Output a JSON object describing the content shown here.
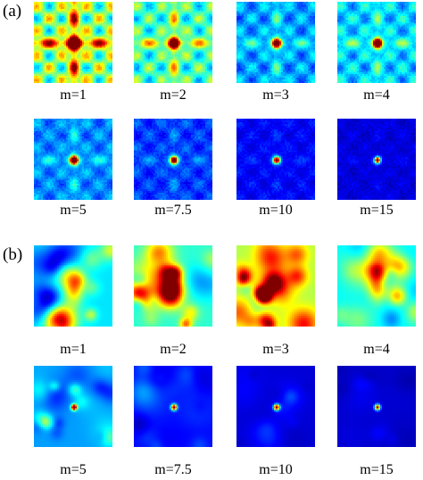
{
  "figure": {
    "panel_a": {
      "label": "(a)",
      "captions": [
        "m=1",
        "m=2",
        "m=3",
        "m=4",
        "m=5",
        "m=7.5",
        "m=10",
        "m=15"
      ]
    },
    "panel_b": {
      "label": "(b)",
      "captions": [
        "m=1",
        "m=2",
        "m=3",
        "m=4",
        "m=5",
        "m=7.5",
        "m=10",
        "m=15"
      ]
    },
    "colormap": [
      "#00008f",
      "#0000ff",
      "#0080ff",
      "#00ffff",
      "#80ff80",
      "#ffff00",
      "#ff8000",
      "#ff0000",
      "#800000"
    ]
  }
}
